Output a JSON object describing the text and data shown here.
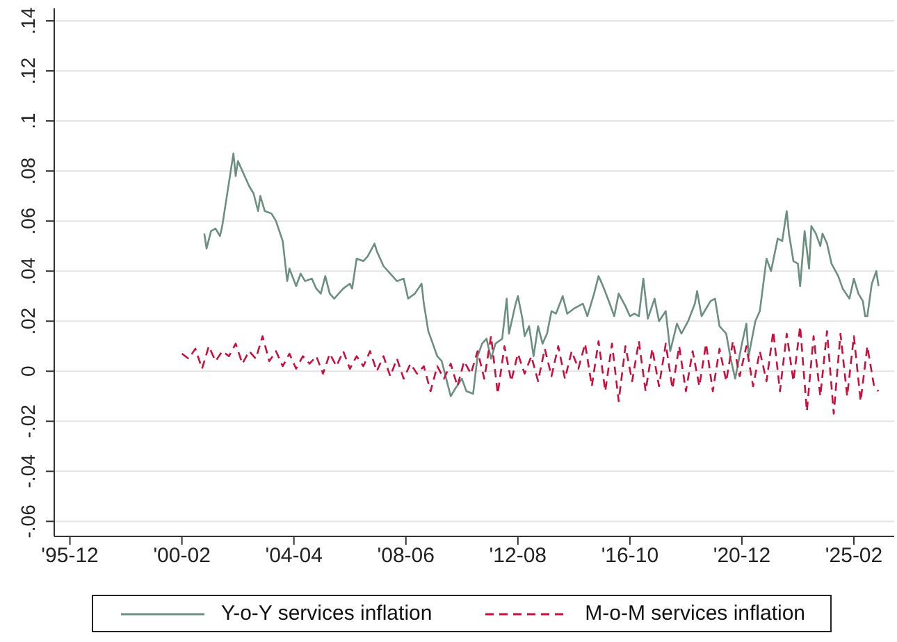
{
  "chart_data": {
    "type": "line",
    "grid": "y",
    "legend": "bottom",
    "marker": "none",
    "xlim": [
      "1995-05",
      "2026-08"
    ],
    "xticks": [
      {
        "value": "1995-12",
        "label": "'95-12"
      },
      {
        "value": "2000-02",
        "label": "'00-02"
      },
      {
        "value": "2004-04",
        "label": "'04-04"
      },
      {
        "value": "2008-06",
        "label": "'08-06"
      },
      {
        "value": "2012-08",
        "label": "'12-08"
      },
      {
        "value": "2016-10",
        "label": "'16-10"
      },
      {
        "value": "2020-12",
        "label": "'20-12"
      },
      {
        "value": "2025-02",
        "label": "'25-02"
      }
    ],
    "ylim": [
      -0.066,
      0.145
    ],
    "yticks": [
      {
        "value": -0.06,
        "label": "-.06"
      },
      {
        "value": -0.04,
        "label": "-.04"
      },
      {
        "value": -0.02,
        "label": "-.02"
      },
      0,
      {
        "value": 0.02,
        "label": ".02"
      },
      {
        "value": 0.04,
        "label": ".04"
      },
      {
        "value": 0.06,
        "label": ".06"
      },
      {
        "value": 0.08,
        "label": ".08"
      },
      {
        "value": 0.1,
        "label": ".1"
      },
      {
        "value": 0.12,
        "label": ".12"
      },
      {
        "value": 0.14,
        "label": ".14"
      }
    ],
    "series": [
      {
        "name": "Y-o-Y services inflation",
        "color": "#6b8f80",
        "line_style": "solid",
        "x": [
          "2000-12",
          "2001-01",
          "2001-03",
          "2001-05",
          "2001-07",
          "2001-08",
          "2002-01",
          "2002-02",
          "2002-03",
          "2002-05",
          "2002-08",
          "2002-10",
          "2002-12",
          "2003-01",
          "2003-03",
          "2003-06",
          "2003-08",
          "2003-11",
          "2004-01",
          "2004-02",
          "2004-05",
          "2004-07",
          "2004-09",
          "2004-12",
          "2005-02",
          "2005-04",
          "2005-06",
          "2005-08",
          "2005-10",
          "2006-02",
          "2006-05",
          "2006-06",
          "2006-08",
          "2006-11",
          "2007-01",
          "2007-04",
          "2007-05",
          "2007-08",
          "2007-12",
          "2008-02",
          "2008-05",
          "2008-07",
          "2008-10",
          "2009-01",
          "2009-02",
          "2009-04",
          "2009-06",
          "2009-08",
          "2009-10",
          "2009-12",
          "2010-02",
          "2010-04",
          "2010-07",
          "2010-09",
          "2010-12",
          "2011-02",
          "2011-04",
          "2011-06",
          "2011-08",
          "2011-10",
          "2012-01",
          "2012-03",
          "2012-04",
          "2012-07",
          "2012-08",
          "2012-10",
          "2012-11",
          "2013-01",
          "2013-03",
          "2013-05",
          "2013-07",
          "2013-09",
          "2013-11",
          "2014-01",
          "2014-04",
          "2014-06",
          "2014-09",
          "2015-01",
          "2015-03",
          "2015-06",
          "2015-08",
          "2015-10",
          "2016-01",
          "2016-03",
          "2016-05",
          "2016-08",
          "2016-10",
          "2016-12",
          "2017-02",
          "2017-04",
          "2017-06",
          "2017-09",
          "2017-11",
          "2018-02",
          "2018-04",
          "2018-07",
          "2018-09",
          "2018-12",
          "2019-03",
          "2019-04",
          "2019-06",
          "2019-10",
          "2019-12",
          "2020-02",
          "2020-05",
          "2020-07",
          "2020-09",
          "2020-12",
          "2021-02",
          "2021-03",
          "2021-06",
          "2021-08",
          "2021-09",
          "2021-11",
          "2022-01",
          "2022-04",
          "2022-06",
          "2022-08",
          "2022-09",
          "2022-11",
          "2023-01",
          "2023-02",
          "2023-04",
          "2023-06",
          "2023-07",
          "2023-09",
          "2023-11",
          "2023-12",
          "2024-02",
          "2024-04",
          "2024-07",
          "2024-09",
          "2024-12",
          "2025-02",
          "2025-04",
          "2025-06",
          "2025-07",
          "2025-08",
          "2025-10",
          "2025-12",
          "2026-01"
        ],
        "values": [
          0.055,
          0.049,
          0.056,
          0.057,
          0.054,
          0.058,
          0.087,
          0.078,
          0.084,
          0.08,
          0.074,
          0.071,
          0.064,
          0.07,
          0.064,
          0.063,
          0.06,
          0.052,
          0.036,
          0.041,
          0.034,
          0.039,
          0.036,
          0.037,
          0.033,
          0.031,
          0.038,
          0.031,
          0.029,
          0.033,
          0.035,
          0.033,
          0.045,
          0.044,
          0.046,
          0.051,
          0.048,
          0.042,
          0.038,
          0.036,
          0.037,
          0.029,
          0.031,
          0.035,
          0.027,
          0.016,
          0.011,
          0.006,
          0.004,
          -0.003,
          -0.01,
          -0.007,
          -0.003,
          -0.008,
          -0.009,
          0.006,
          0.011,
          0.013,
          0.005,
          0.011,
          0.013,
          0.029,
          0.015,
          0.027,
          0.03,
          0.021,
          0.014,
          0.018,
          0.006,
          0.018,
          0.011,
          0.015,
          0.024,
          0.023,
          0.03,
          0.023,
          0.025,
          0.027,
          0.022,
          0.031,
          0.038,
          0.034,
          0.027,
          0.022,
          0.031,
          0.026,
          0.022,
          0.023,
          0.022,
          0.037,
          0.021,
          0.029,
          0.02,
          0.024,
          0.008,
          0.019,
          0.015,
          0.02,
          0.027,
          0.032,
          0.022,
          0.028,
          0.029,
          0.018,
          0.015,
          0.005,
          -0.003,
          0.011,
          0.019,
          0.006,
          0.02,
          0.024,
          0.031,
          0.045,
          0.04,
          0.053,
          0.052,
          0.064,
          0.055,
          0.044,
          0.043,
          0.034,
          0.056,
          0.041,
          0.058,
          0.055,
          0.05,
          0.055,
          0.051,
          0.043,
          0.038,
          0.033,
          0.029,
          0.037,
          0.031,
          0.028,
          0.022,
          0.022,
          0.035,
          0.04,
          0.034
        ]
      },
      {
        "name": "M-o-M services inflation",
        "color": "#c8103e",
        "line_style": "dashed",
        "x": [
          "2000-02",
          "2000-05",
          "2000-08",
          "2000-11",
          "2001-02",
          "2001-05",
          "2001-08",
          "2001-11",
          "2002-02",
          "2002-05",
          "2002-08",
          "2002-11",
          "2003-02",
          "2003-05",
          "2003-08",
          "2003-11",
          "2004-02",
          "2004-05",
          "2004-08",
          "2004-11",
          "2005-02",
          "2005-05",
          "2005-08",
          "2005-11",
          "2006-02",
          "2006-05",
          "2006-08",
          "2006-11",
          "2007-02",
          "2007-05",
          "2007-08",
          "2007-11",
          "2008-02",
          "2008-05",
          "2008-08",
          "2008-11",
          "2009-02",
          "2009-05",
          "2009-08",
          "2009-11",
          "2010-02",
          "2010-05",
          "2010-08",
          "2010-11",
          "2011-02",
          "2011-05",
          "2011-08",
          "2011-11",
          "2012-02",
          "2012-05",
          "2012-08",
          "2012-11",
          "2013-02",
          "2013-05",
          "2013-08",
          "2013-11",
          "2014-02",
          "2014-05",
          "2014-08",
          "2014-11",
          "2015-02",
          "2015-05",
          "2015-08",
          "2015-11",
          "2016-02",
          "2016-05",
          "2016-08",
          "2016-11",
          "2017-02",
          "2017-05",
          "2017-08",
          "2017-11",
          "2018-02",
          "2018-05",
          "2018-08",
          "2018-11",
          "2019-02",
          "2019-05",
          "2019-08",
          "2019-11",
          "2020-02",
          "2020-05",
          "2020-08",
          "2020-11",
          "2021-02",
          "2021-05",
          "2021-08",
          "2021-11",
          "2022-02",
          "2022-05",
          "2022-08",
          "2022-11",
          "2023-02",
          "2023-05",
          "2023-08",
          "2023-11",
          "2024-02",
          "2024-05",
          "2024-08",
          "2024-11",
          "2025-02",
          "2025-05",
          "2025-08",
          "2025-11",
          "2026-01"
        ],
        "values": [
          0.007,
          0.005,
          0.009,
          0.001,
          0.01,
          0.004,
          0.008,
          0.006,
          0.011,
          0.003,
          0.008,
          0.005,
          0.014,
          0.004,
          0.008,
          0.002,
          0.007,
          0.001,
          0.006,
          0.003,
          0.006,
          -0.001,
          0.007,
          0.002,
          0.008,
          0.001,
          0.006,
          0.002,
          0.008,
          0.0,
          0.006,
          -0.002,
          0.005,
          -0.003,
          0.003,
          -0.001,
          0.002,
          -0.008,
          0.002,
          -0.003,
          0.003,
          -0.006,
          0.004,
          -0.001,
          0.008,
          -0.003,
          0.014,
          -0.009,
          0.01,
          -0.004,
          0.007,
          -0.001,
          0.006,
          -0.004,
          0.009,
          -0.002,
          0.01,
          -0.003,
          0.008,
          0.001,
          0.011,
          -0.006,
          0.012,
          -0.008,
          0.011,
          -0.012,
          0.01,
          -0.004,
          0.012,
          -0.008,
          0.009,
          -0.006,
          0.011,
          -0.007,
          0.01,
          -0.008,
          0.008,
          -0.006,
          0.011,
          -0.008,
          0.009,
          -0.004,
          0.012,
          -0.002,
          0.01,
          -0.006,
          0.008,
          -0.004,
          0.016,
          -0.008,
          0.015,
          -0.004,
          0.018,
          -0.016,
          0.014,
          -0.01,
          0.016,
          -0.017,
          0.015,
          -0.01,
          0.014,
          -0.012,
          0.01,
          -0.006,
          -0.008
        ]
      }
    ]
  }
}
